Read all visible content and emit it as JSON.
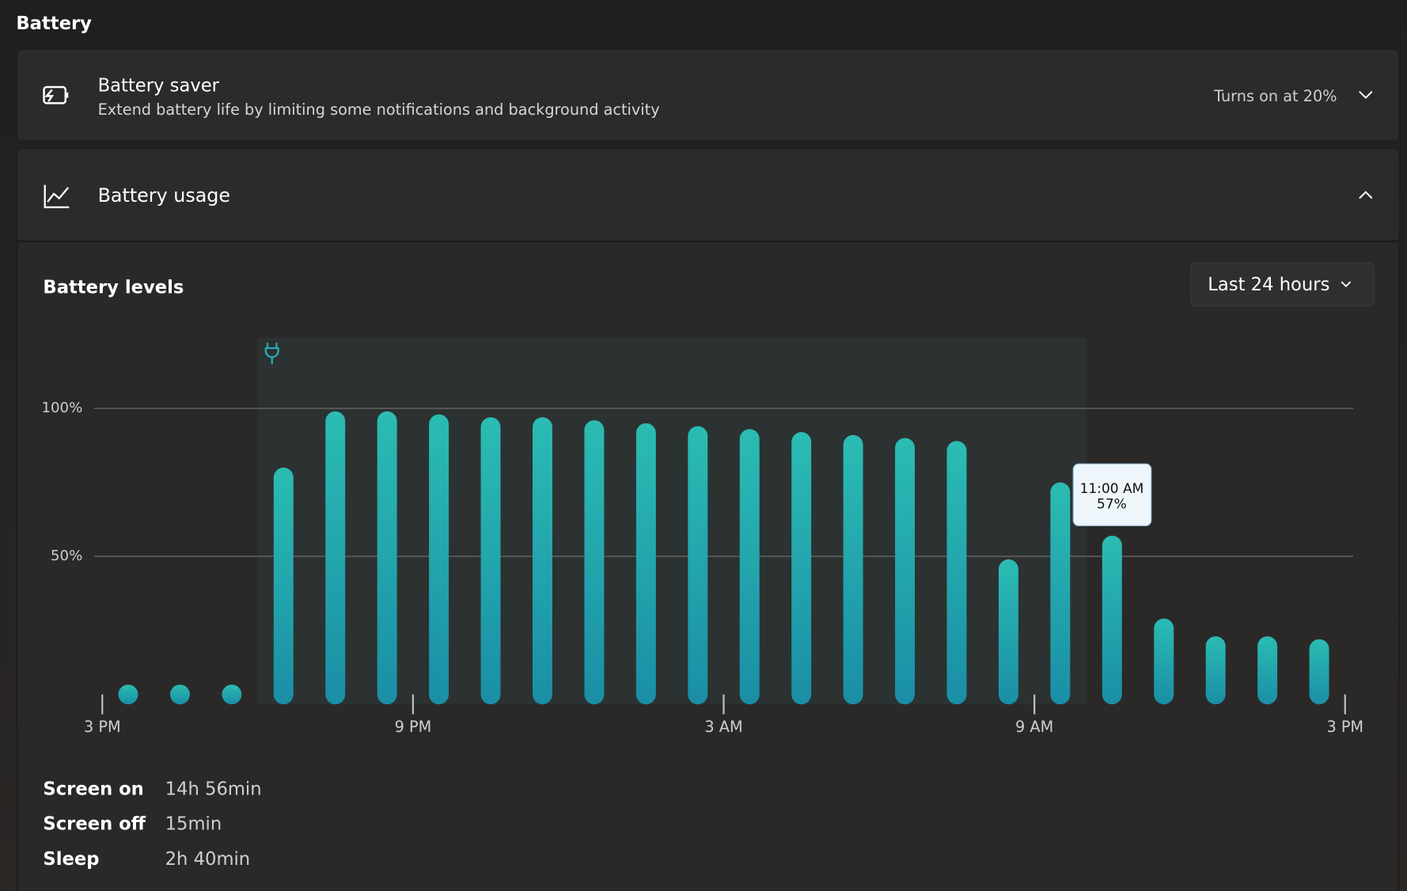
{
  "page_title": "Battery",
  "battery_saver": {
    "title": "Battery saver",
    "description": "Extend battery life by limiting some notifications and background activity",
    "status": "Turns on at 20%"
  },
  "battery_usage": {
    "title": "Battery usage",
    "period": "Last 24 hours"
  },
  "chart_data": {
    "type": "bar",
    "title": "Battery levels",
    "x": [
      0.5,
      1.5,
      2.5,
      3.5,
      4.5,
      5.5,
      6.5,
      7.5,
      8.5,
      9.5,
      10.5,
      11.5,
      12.5,
      13.5,
      14.5,
      15.5,
      16.5,
      17.5,
      18.5,
      19.5,
      20.5,
      21.5,
      22.5,
      23.5
    ],
    "values": [
      0,
      0,
      0,
      80,
      99,
      99,
      98,
      97,
      97,
      96,
      95,
      94,
      93,
      92,
      91,
      90,
      89,
      49,
      75,
      57,
      29,
      23,
      23,
      22
    ],
    "colors": [
      "#2bbcb3",
      "#1a8ea6"
    ],
    "xlim": [
      0,
      24
    ],
    "xticks": [
      {
        "value": 0,
        "label": "3 PM"
      },
      {
        "value": 6,
        "label": "9 PM"
      },
      {
        "value": 12,
        "label": "3 AM"
      },
      {
        "value": 18,
        "label": "9 AM"
      },
      {
        "value": 24,
        "label": "3 PM"
      }
    ],
    "ylim": [
      0,
      124
    ],
    "yticks": [
      {
        "value": 50,
        "label": "50%"
      },
      {
        "value": 100,
        "label": "100%"
      }
    ],
    "grid": true,
    "charging": [
      3,
      19
    ],
    "tooltip": {
      "label": "11:00 AM",
      "value_label": "57%"
    }
  },
  "stats": [
    {
      "label": "Screen on",
      "value": "14h 56min"
    },
    {
      "label": "Screen off",
      "value": "15min"
    },
    {
      "label": "Sleep",
      "value": "2h 40min"
    }
  ]
}
